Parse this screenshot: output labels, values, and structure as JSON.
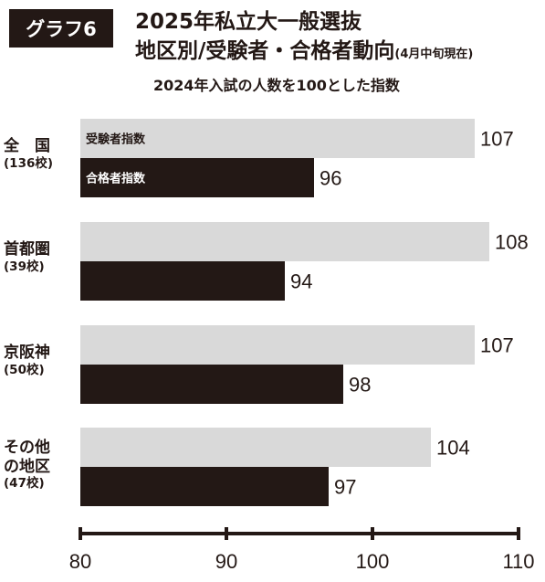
{
  "badge": "グラフ6",
  "title_line1": "2025年私立大一般選抜",
  "title_line2": "地区別/受験者・合格者動向",
  "title_note": "(4月中旬現在)",
  "subtitle": "2024年入試の人数を100とした指数",
  "colors": {
    "applicants": "#d9d9d9",
    "passers": "#231815",
    "axis": "#231815"
  },
  "regions": [
    {
      "name": "全　国",
      "count": "(136校)"
    },
    {
      "name": "首都圏",
      "count": "(39校)"
    },
    {
      "name": "京阪神",
      "count": "(50校)"
    },
    {
      "name": "その他\nの地区",
      "count": "(47校)"
    }
  ],
  "chart_data": {
    "type": "bar",
    "orientation": "horizontal",
    "categories": [
      "全国",
      "首都圏",
      "京阪神",
      "その他の地区"
    ],
    "series": [
      {
        "name": "受験者指数",
        "values": [
          107,
          108,
          107,
          104
        ]
      },
      {
        "name": "合格者指数",
        "values": [
          96,
          94,
          98,
          97
        ]
      }
    ],
    "xlim": [
      80,
      110
    ],
    "xticks": [
      80,
      90,
      100,
      110
    ],
    "legend": "inside first bars"
  }
}
